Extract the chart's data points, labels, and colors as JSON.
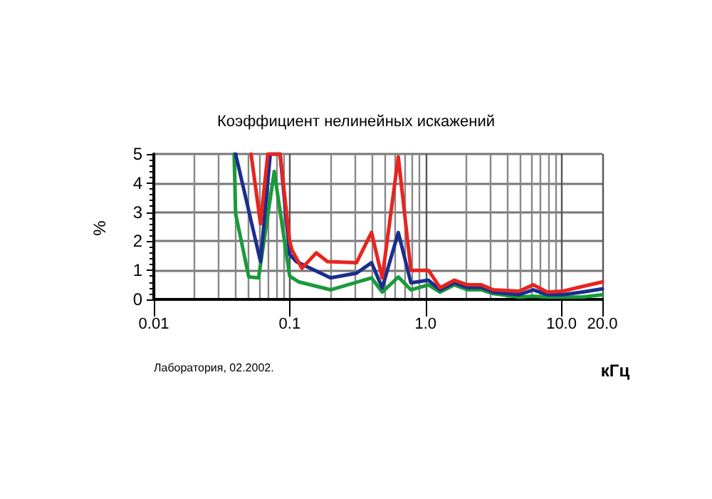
{
  "chart_data": {
    "type": "line",
    "title": "Коэффициент нелинейных искажений",
    "xlabel": "кГц",
    "ylabel": "%",
    "annotations": [
      "Лаборатория, 02.2002."
    ],
    "log": "x",
    "grid": true,
    "line_style": "solid",
    "marker": "none",
    "xlim": [
      0.01,
      20
    ],
    "xticks": [
      0.01,
      0.1,
      {
        "value": 1,
        "label": "1.0"
      },
      {
        "value": 10,
        "label": "10.0"
      },
      {
        "value": 20,
        "label": "20.0"
      }
    ],
    "ylim": [
      0,
      5
    ],
    "yticks": [
      0,
      1,
      2,
      3,
      4,
      5
    ],
    "series": [
      {
        "color": "#1a9a3a",
        "x": [
          0.039,
          0.04,
          0.05,
          0.059,
          0.077,
          0.1,
          0.117,
          0.2,
          0.4,
          0.48,
          0.63,
          0.78,
          1.05,
          1.28,
          1.63,
          2.03,
          2.58,
          3.14,
          4.87,
          6.2,
          7.9,
          14.2,
          20
        ],
        "values": [
          5,
          2.95,
          0.77,
          0.74,
          4.4,
          0.8,
          0.6,
          0.33,
          0.74,
          0.25,
          0.77,
          0.33,
          0.5,
          0.25,
          0.5,
          0.33,
          0.33,
          0.2,
          0.08,
          0.11,
          0.08,
          0.08,
          0.16
        ]
      },
      {
        "color": "#1a2f8c",
        "x": [
          0.04,
          0.061,
          0.072,
          0.085,
          0.1,
          0.112,
          0.2,
          0.31,
          0.4,
          0.48,
          0.63,
          0.78,
          1.05,
          1.28,
          1.63,
          2.03,
          2.58,
          3.14,
          4.87,
          6.2,
          7.9,
          10.1,
          14.2,
          20
        ],
        "values": [
          5,
          1.3,
          5,
          5,
          1.55,
          1.3,
          0.74,
          0.9,
          1.26,
          0.4,
          2.3,
          0.57,
          0.66,
          0.33,
          0.57,
          0.41,
          0.41,
          0.25,
          0.16,
          0.33,
          0.16,
          0.16,
          0.25,
          0.36
        ]
      },
      {
        "color": "#e8241f",
        "x": [
          0.052,
          0.061,
          0.069,
          0.085,
          0.1,
          0.104,
          0.123,
          0.157,
          0.19,
          0.31,
          0.4,
          0.48,
          0.63,
          0.78,
          1.05,
          1.28,
          1.63,
          2.03,
          2.58,
          3.14,
          4.87,
          6.2,
          7.9,
          10.1,
          14.2,
          20
        ],
        "values": [
          5,
          2.6,
          5,
          5,
          2.0,
          1.7,
          1.07,
          1.6,
          1.3,
          1.26,
          2.3,
          0.74,
          4.9,
          1.0,
          1.0,
          0.4,
          0.66,
          0.5,
          0.5,
          0.33,
          0.28,
          0.5,
          0.25,
          0.28,
          0.44,
          0.6
        ]
      }
    ]
  }
}
